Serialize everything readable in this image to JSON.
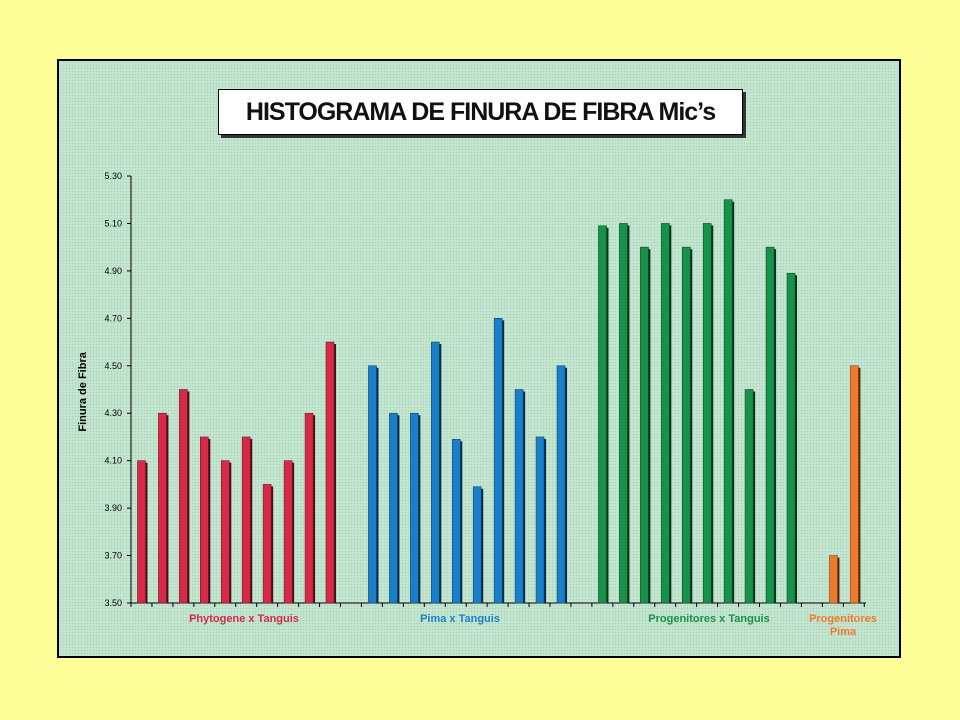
{
  "chart_data": {
    "type": "bar",
    "title": "HISTOGRAMA DE FINURA DE FIBRA Mic’s",
    "ylabel": "Finura de Fibra",
    "xlabel": "",
    "ylim": [
      3.5,
      5.3
    ],
    "yticks": [
      "3.50",
      "3.70",
      "3.90",
      "4.10",
      "4.30",
      "4.50",
      "4.70",
      "4.90",
      "5.10",
      "5.30"
    ],
    "grid": false,
    "groups": [
      {
        "label": "Phytogene x Tanguis",
        "color": "#d62a48",
        "values": [
          4.1,
          4.3,
          4.4,
          4.2,
          4.1,
          4.2,
          4.0,
          4.1,
          4.3,
          4.6
        ]
      },
      {
        "label": "Pima x Tanguis",
        "color": "#1a7fc9",
        "values": [
          4.5,
          4.3,
          4.3,
          4.6,
          4.19,
          3.99,
          4.7,
          4.4,
          4.2,
          4.5
        ]
      },
      {
        "label": "Progenitores  x Tanguis",
        "color": "#17924a",
        "values": [
          5.09,
          5.1,
          5.0,
          5.1,
          5.0,
          5.1,
          5.2,
          4.4,
          5.0,
          4.89
        ]
      },
      {
        "label": "Progenitores Pima",
        "color": "#f07a2c",
        "values": [
          3.7,
          4.5
        ]
      }
    ]
  }
}
